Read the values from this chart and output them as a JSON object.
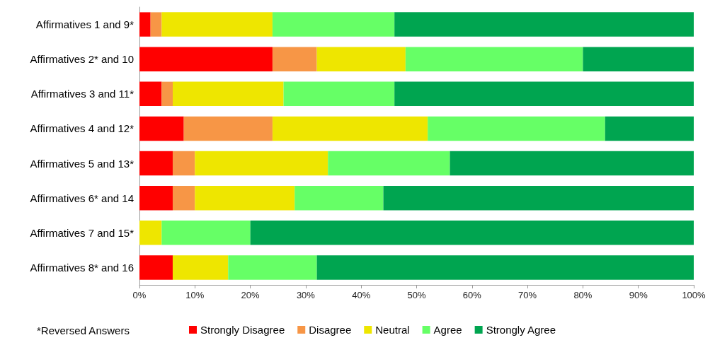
{
  "chart_data": {
    "type": "bar",
    "orientation": "horizontal",
    "stacked": true,
    "legend": "bottom",
    "grid": false,
    "categories": [
      "Affirmatives 1 and 9*",
      "Affirmatives 2* and 10",
      "Affirmatives 3 and 11*",
      "Affirmatives 4 and 12*",
      "Affirmatives 5 and 13*",
      "Affirmatives 6* and 14",
      "Affirmatives 7 and 15*",
      "Affirmatives 8* and 16"
    ],
    "series": [
      {
        "name": "Strongly Disagree",
        "color": "#ff0000",
        "values": [
          2,
          24,
          4,
          8,
          6,
          6,
          0,
          6
        ]
      },
      {
        "name": "Disagree",
        "color": "#f79646",
        "values": [
          2,
          8,
          2,
          16,
          4,
          4,
          0,
          0
        ]
      },
      {
        "name": "Neutral",
        "color": "#eee600",
        "values": [
          20,
          16,
          20,
          28,
          24,
          18,
          4,
          10
        ]
      },
      {
        "name": "Agree",
        "color": "#66ff66",
        "values": [
          22,
          32,
          20,
          32,
          22,
          16,
          16,
          16
        ]
      },
      {
        "name": "Strongly Agree",
        "color": "#00a550",
        "values": [
          54,
          20,
          54,
          16,
          44,
          56,
          80,
          68
        ]
      }
    ],
    "xlim": [
      0,
      100
    ],
    "xticks": [
      {
        "value": 0,
        "label": "0%"
      },
      {
        "value": 10,
        "label": "10%"
      },
      {
        "value": 20,
        "label": "20%"
      },
      {
        "value": 30,
        "label": "30%"
      },
      {
        "value": 40,
        "label": "40%"
      },
      {
        "value": 50,
        "label": "50%"
      },
      {
        "value": 60,
        "label": "60%"
      },
      {
        "value": 70,
        "label": "70%"
      },
      {
        "value": 80,
        "label": "80%"
      },
      {
        "value": 90,
        "label": "90%"
      },
      {
        "value": 100,
        "label": "100%"
      }
    ],
    "annotations": [
      "*Reversed Answers"
    ]
  }
}
